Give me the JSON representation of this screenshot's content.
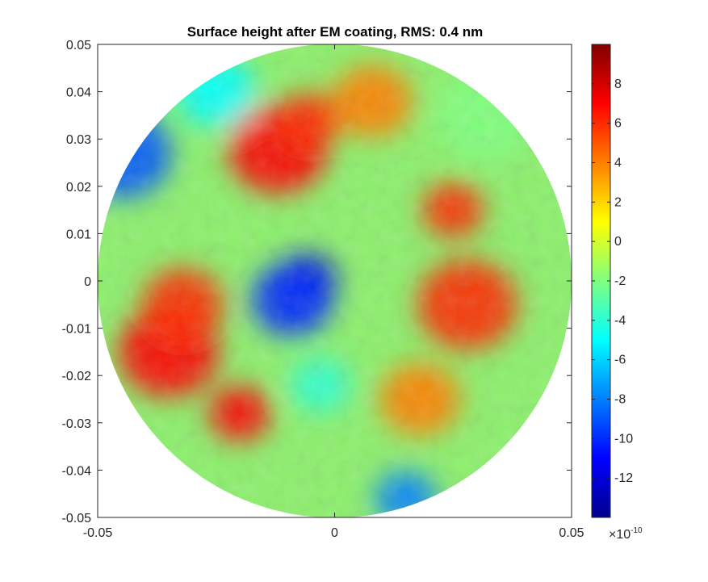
{
  "chart_data": {
    "type": "heatmap",
    "title": "Surface height after EM coating, RMS: 0.4 nm",
    "xlabel": "",
    "ylabel": "",
    "xlim": [
      -0.05,
      0.05
    ],
    "ylim": [
      -0.05,
      0.05
    ],
    "aperture": "circular, radius 0.05",
    "colormap": "jet",
    "x_ticks": [
      -0.05,
      0,
      0.05
    ],
    "x_tick_labels": [
      "-0.05",
      "0",
      "0.05"
    ],
    "y_ticks": [
      0.05,
      0.04,
      0.03,
      0.02,
      0.01,
      0,
      -0.01,
      -0.02,
      -0.03,
      -0.04,
      -0.05
    ],
    "y_tick_labels": [
      "0.05",
      "0.04",
      "0.03",
      "0.02",
      "0.01",
      "0",
      "-0.01",
      "-0.02",
      "-0.03",
      "-0.04",
      "-0.05"
    ],
    "colorbar": {
      "clim": [
        -14,
        10
      ],
      "ticks": [
        8,
        6,
        4,
        2,
        0,
        -2,
        -4,
        -6,
        -8,
        -10,
        -12
      ],
      "tick_labels": [
        "8",
        "6",
        "4",
        "2",
        "0",
        "-2",
        "-4",
        "-6",
        "-8",
        "-10",
        "-12"
      ],
      "exponent_label": "×10",
      "exponent_power": "-10"
    },
    "features": [
      {
        "x": -0.006,
        "y": 0.0,
        "value": -12
      },
      {
        "x": -0.009,
        "y": -0.004,
        "value": -10
      },
      {
        "x": -0.045,
        "y": 0.027,
        "value": -9
      },
      {
        "x": 0.015,
        "y": -0.046,
        "value": -8
      },
      {
        "x": -0.025,
        "y": 0.04,
        "value": -5
      },
      {
        "x": -0.012,
        "y": 0.028,
        "value": 7
      },
      {
        "x": -0.005,
        "y": 0.034,
        "value": 6
      },
      {
        "x": 0.008,
        "y": 0.038,
        "value": 4
      },
      {
        "x": -0.035,
        "y": -0.015,
        "value": 7
      },
      {
        "x": -0.02,
        "y": -0.028,
        "value": 7
      },
      {
        "x": -0.032,
        "y": -0.005,
        "value": 6
      },
      {
        "x": 0.028,
        "y": -0.005,
        "value": 6
      },
      {
        "x": 0.025,
        "y": 0.015,
        "value": 6
      },
      {
        "x": 0.018,
        "y": -0.025,
        "value": 4
      },
      {
        "x": 0.032,
        "y": 0.035,
        "value": -2
      },
      {
        "x": -0.003,
        "y": -0.022,
        "value": -4
      }
    ]
  }
}
